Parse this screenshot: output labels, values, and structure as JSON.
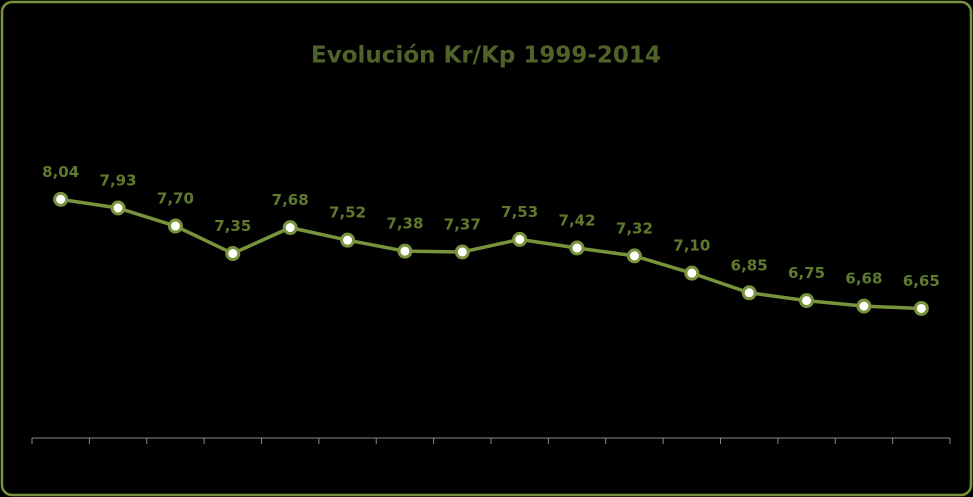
{
  "chart_data": {
    "type": "line",
    "title": "Evolución Kr/Kp 1999-2014",
    "categories": [
      null,
      null,
      null,
      null,
      null,
      null,
      null,
      null,
      null,
      null,
      null,
      null,
      null,
      null,
      null,
      null
    ],
    "series": [
      {
        "color": "#77933c",
        "values": [
          8.04,
          7.93,
          7.7,
          7.35,
          7.68,
          7.52,
          7.38,
          7.37,
          7.53,
          7.42,
          7.32,
          7.1,
          6.85,
          6.75,
          6.68,
          6.65
        ],
        "value_labels": [
          "8,04",
          "7,93",
          "7,70",
          "7,35",
          "7,68",
          "7,52",
          "7,38",
          "7,37",
          "7,53",
          "7,42",
          "7,32",
          "7,10",
          "6,85",
          "6,75",
          "6,68",
          "6,65"
        ]
      }
    ],
    "ylim": [
      5,
      9
    ]
  }
}
